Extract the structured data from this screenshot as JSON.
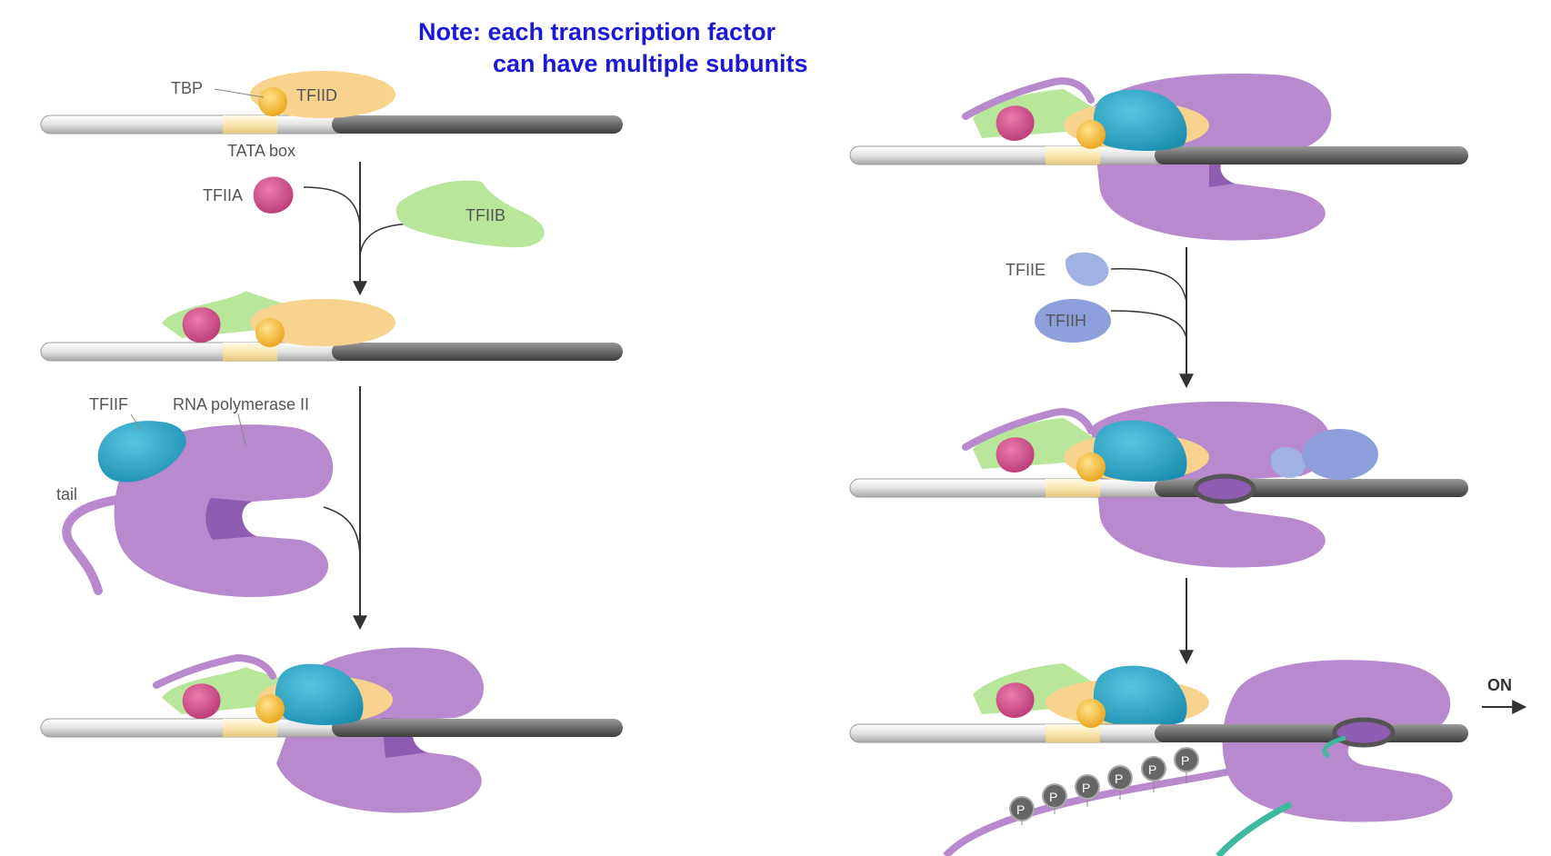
{
  "note": {
    "line1": "Note: each transcription factor",
    "line2": "can have multiple subunits"
  },
  "labels": {
    "tbp": "TBP",
    "tfiid": "TFIID",
    "tata_box": "TATA box",
    "tfiia": "TFIIA",
    "tfiib": "TFIIB",
    "tfiif": "TFIIF",
    "rna_pol": "RNA polymerase II",
    "tail": "tail",
    "tfiie": "TFIIE",
    "tfiih": "TFIIH",
    "on": "ON",
    "phospho": "P"
  },
  "bottom_caption": "",
  "colors": {
    "tfiid": "#f7d38e",
    "tbp": "#f2b830",
    "tfiia": "#d2558c",
    "tfiib": "#b8e69a",
    "tfiif": "#2aa6c6",
    "polymerase": "#b889cc",
    "polymerase_dark": "#8e5cb0",
    "tfiie": "#9fb2e2",
    "tfiih": "#8ea0dc",
    "dna_light": "#e6e6e6",
    "dna_dark": "#6b6b6b",
    "rna": "#3fb8a0",
    "note_text": "#1a1ad4"
  }
}
